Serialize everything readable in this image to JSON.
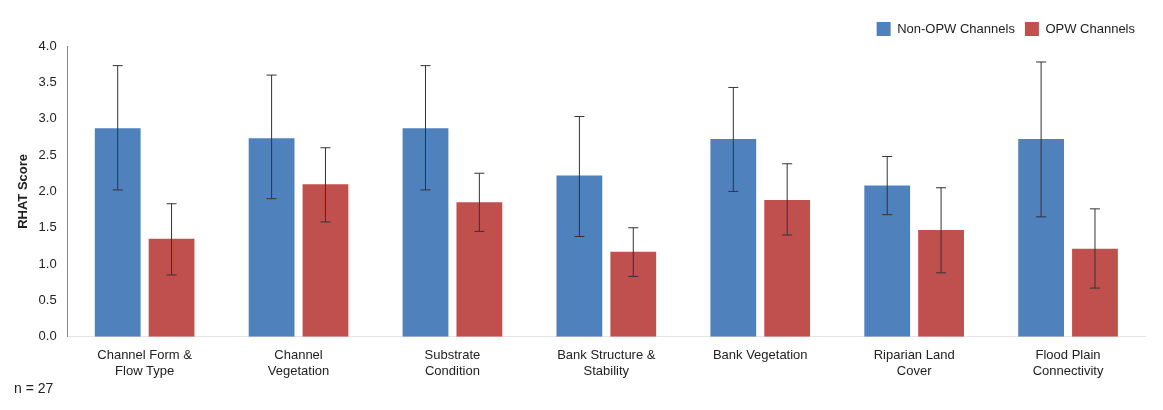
{
  "chart_data": {
    "type": "bar",
    "ylabel": "RHAT Score",
    "categories": [
      "Channel Form & Flow Type",
      "Channel Vegetation",
      "Substrate Condition",
      "Bank Structure & Stability",
      "Bank Vegetation",
      "Riparian Land Cover",
      "Flood Plain Connectivity"
    ],
    "series": [
      {
        "name": "Non-OPW Channels",
        "color": "#4f81bd",
        "values": [
          2.87,
          2.73,
          2.87,
          2.22,
          2.72,
          2.08,
          2.72
        ],
        "errors": [
          [
            2.02,
            3.73
          ],
          [
            1.9,
            3.6
          ],
          [
            2.02,
            3.73
          ],
          [
            1.38,
            3.03
          ],
          [
            2.0,
            3.43
          ],
          [
            1.68,
            2.48
          ],
          [
            1.65,
            3.78
          ]
        ]
      },
      {
        "name": "OPW Channels",
        "color": "#c0504d",
        "values": [
          1.35,
          2.1,
          1.85,
          1.17,
          1.88,
          1.47,
          1.21
        ],
        "errors": [
          [
            0.85,
            1.83
          ],
          [
            1.58,
            2.6
          ],
          [
            1.45,
            2.25
          ],
          [
            0.83,
            1.5
          ],
          [
            1.4,
            2.38
          ],
          [
            0.88,
            2.05
          ],
          [
            0.67,
            1.76
          ]
        ]
      }
    ],
    "ylim": [
      0,
      4
    ],
    "yticks": [
      {
        "value": 0,
        "label": "0.0"
      },
      0.5,
      {
        "value": 1,
        "label": "1.0"
      },
      1.5,
      {
        "value": 2,
        "label": "2.0"
      },
      2.5,
      {
        "value": 3,
        "label": "3.0"
      },
      3.5,
      {
        "value": 4,
        "label": "4.0"
      }
    ],
    "grid": false,
    "legend": "top right",
    "annotations": [
      "n = 27"
    ]
  }
}
